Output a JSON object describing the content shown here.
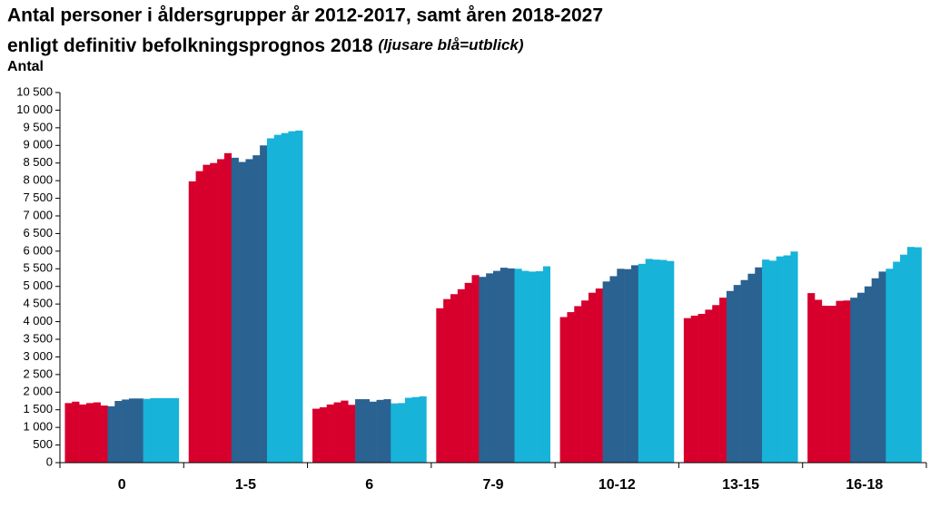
{
  "chart_data": {
    "type": "bar",
    "title": "Antal personer i åldersgrupper år 2012-2017, samt åren 2018-2027",
    "subtitle": "enligt definitiv befolkningsprognos  2018",
    "annotation": "(ljusare blå=utblick)",
    "y_label": "Antal",
    "categories": [
      "0",
      "1-5",
      "6",
      "7-9",
      "10-12",
      "13-15",
      "16-18"
    ],
    "ylim": [
      0,
      10500
    ],
    "yticks": [
      0,
      500,
      {
        "value": 1000,
        "label": "1 000"
      },
      {
        "value": 1500,
        "label": "1 500"
      },
      {
        "value": 2000,
        "label": "2 000"
      },
      {
        "value": 2500,
        "label": "2 500"
      },
      {
        "value": 3000,
        "label": "3 000"
      },
      {
        "value": 3500,
        "label": "3 500"
      },
      {
        "value": 4000,
        "label": "4 000"
      },
      {
        "value": 4500,
        "label": "4 500"
      },
      {
        "value": 5000,
        "label": "5 000"
      },
      {
        "value": 5500,
        "label": "5 500"
      },
      {
        "value": 6000,
        "label": "6 000"
      },
      {
        "value": 6500,
        "label": "6 500"
      },
      {
        "value": 7000,
        "label": "7 000"
      },
      {
        "value": 7500,
        "label": "7 500"
      },
      {
        "value": 8000,
        "label": "8 000"
      },
      {
        "value": 8500,
        "label": "8 500"
      },
      {
        "value": 9000,
        "label": "9 000"
      },
      {
        "value": 9500,
        "label": "9 500"
      },
      {
        "value": 10000,
        "label": "10 000"
      },
      {
        "value": 10500,
        "label": "10 500"
      }
    ],
    "grid": false,
    "series": [
      {
        "color": "#d7002d",
        "values": [
          1690,
          7980,
          1530,
          4380,
          4130,
          4100,
          4810
        ]
      },
      {
        "color": "#d7002d",
        "values": [
          1730,
          8270,
          1570,
          4640,
          4270,
          4170,
          4620
        ]
      },
      {
        "color": "#d7002d",
        "values": [
          1650,
          8450,
          1650,
          4780,
          4440,
          4220,
          4450
        ]
      },
      {
        "color": "#d7002d",
        "values": [
          1690,
          8500,
          1710,
          4920,
          4600,
          4340,
          4450
        ]
      },
      {
        "color": "#d7002d",
        "values": [
          1710,
          8610,
          1760,
          5100,
          4820,
          4470,
          4590
        ]
      },
      {
        "color": "#d7002d",
        "values": [
          1620,
          8780,
          1640,
          5320,
          4940,
          4680,
          4600
        ]
      },
      {
        "color": "#2a6291",
        "values": [
          1600,
          8650,
          1800,
          5270,
          5140,
          4870,
          4680
        ]
      },
      {
        "color": "#2a6291",
        "values": [
          1750,
          8530,
          1800,
          5370,
          5290,
          5040,
          4820
        ]
      },
      {
        "color": "#2a6291",
        "values": [
          1790,
          8610,
          1730,
          5440,
          5500,
          5180,
          5000
        ]
      },
      {
        "color": "#2a6291",
        "values": [
          1820,
          8720,
          1780,
          5530,
          5490,
          5360,
          5230
        ]
      },
      {
        "color": "#2a6291",
        "values": [
          1820,
          9000,
          1800,
          5510,
          5600,
          5540,
          5420
        ]
      },
      {
        "color": "#17b3d9",
        "values": [
          1810,
          9200,
          1680,
          5500,
          5640,
          5760,
          5500
        ]
      },
      {
        "color": "#17b3d9",
        "values": [
          1830,
          9300,
          1690,
          5440,
          5780,
          5730,
          5700
        ]
      },
      {
        "color": "#17b3d9",
        "values": [
          1830,
          9350,
          1840,
          5420,
          5760,
          5850,
          5900
        ]
      },
      {
        "color": "#17b3d9",
        "values": [
          1830,
          9400,
          1860,
          5430,
          5750,
          5880,
          6120
        ]
      },
      {
        "color": "#17b3d9",
        "values": [
          1830,
          9420,
          1880,
          5570,
          5720,
          5990,
          6110
        ]
      }
    ]
  }
}
